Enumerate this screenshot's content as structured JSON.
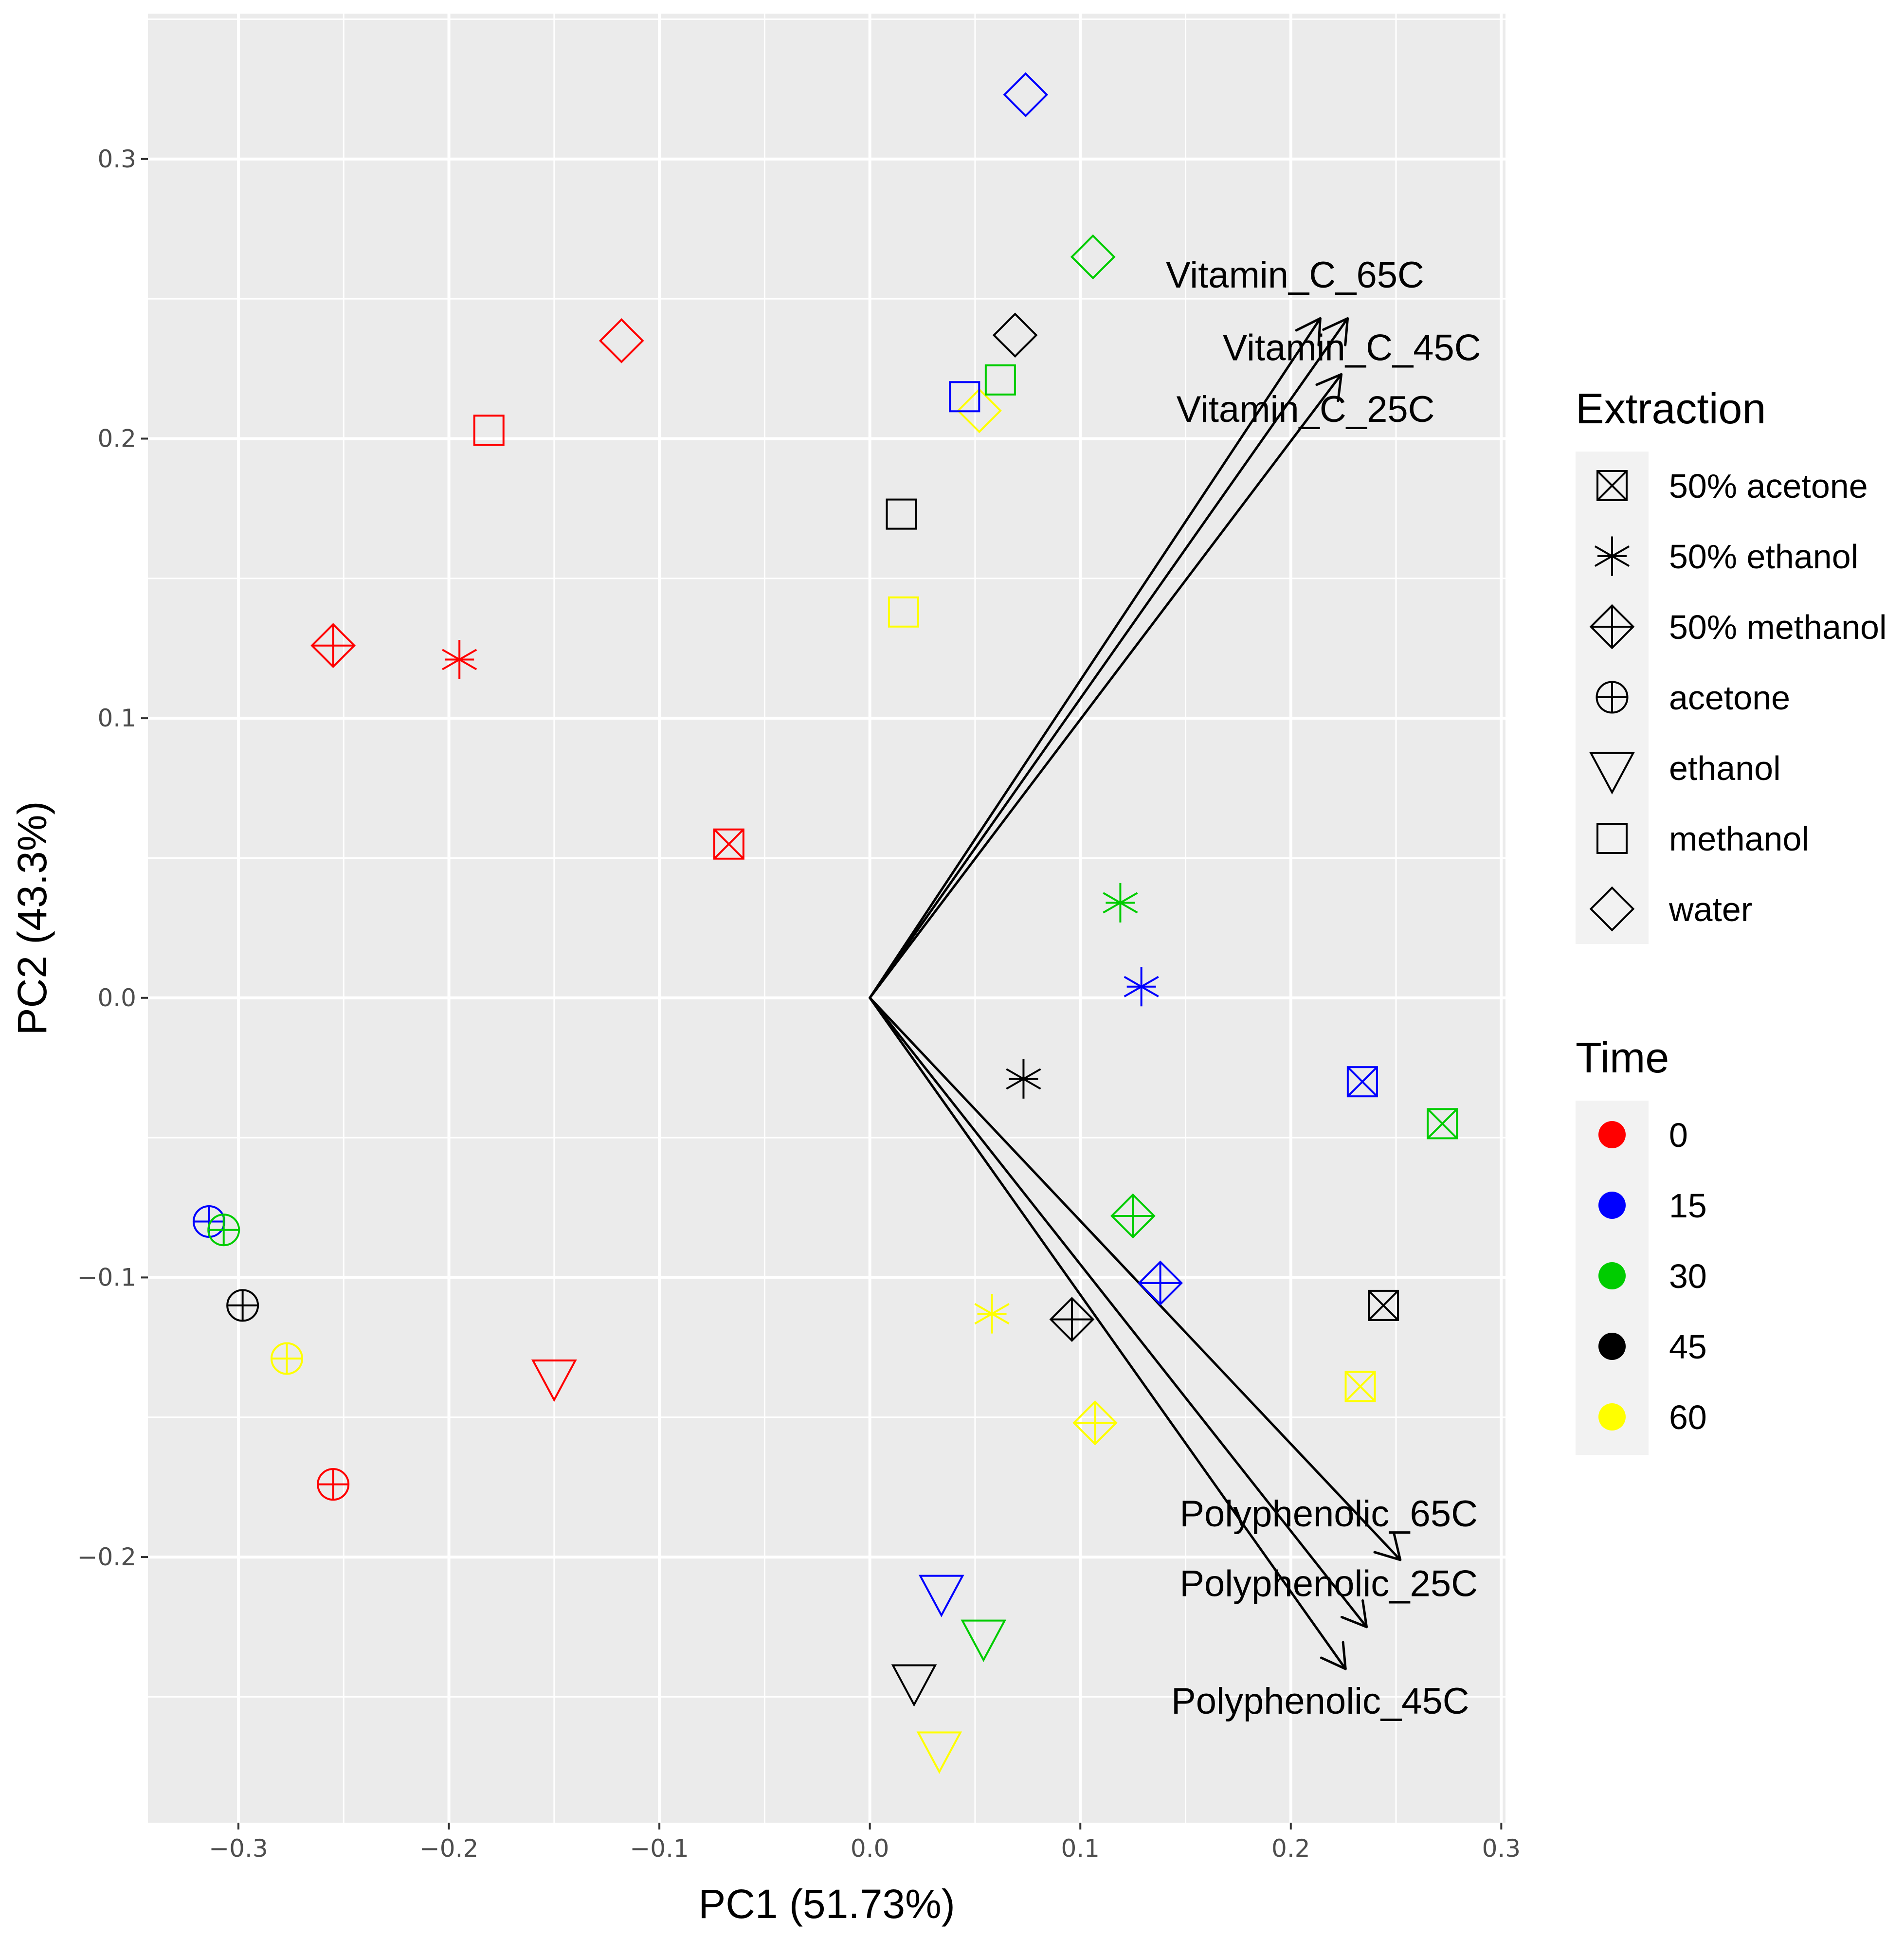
{
  "chart_data": {
    "type": "scatter",
    "subtype": "PCA biplot",
    "title": "",
    "xlabel": "PC1 (51.73%)",
    "ylabel": "PC2 (43.3%)",
    "xlim": [
      -0.343,
      0.302
    ],
    "ylim": [
      -0.295,
      0.352
    ],
    "x_ticks": [
      -0.3,
      -0.2,
      -0.1,
      0.0,
      0.1,
      0.2,
      0.3
    ],
    "x_tick_labels": [
      "−0.3",
      "−0.2",
      "−0.1",
      "0.0",
      "0.1",
      "0.2",
      "0.3"
    ],
    "y_ticks": [
      -0.2,
      -0.1,
      0.0,
      0.1,
      0.2,
      0.3
    ],
    "y_tick_labels": [
      "−0.2",
      "−0.1",
      "0.0",
      "0.1",
      "0.2",
      "0.3"
    ],
    "grid": true,
    "background": "#ebebeb",
    "legends": {
      "extraction": {
        "title": "Extraction",
        "entries": [
          {
            "label": "50% acetone",
            "shape": "square-cross"
          },
          {
            "label": "50% ethanol",
            "shape": "asterisk"
          },
          {
            "label": "50% methanol",
            "shape": "diamond-plus"
          },
          {
            "label": "acetone",
            "shape": "circle-plus"
          },
          {
            "label": "ethanol",
            "shape": "triangle-down"
          },
          {
            "label": "methanol",
            "shape": "square"
          },
          {
            "label": "water",
            "shape": "diamond"
          }
        ]
      },
      "time": {
        "title": "Time",
        "entries": [
          {
            "label": "0",
            "color": "#ff0000"
          },
          {
            "label": "15",
            "color": "#0000ff"
          },
          {
            "label": "30",
            "color": "#00cc00"
          },
          {
            "label": "45",
            "color": "#000000"
          },
          {
            "label": "60",
            "color": "#ffff00"
          }
        ]
      }
    },
    "points": [
      {
        "extraction": "water",
        "time": "15",
        "x": 0.074,
        "y": 0.323
      },
      {
        "extraction": "water",
        "time": "30",
        "x": 0.106,
        "y": 0.265
      },
      {
        "extraction": "water",
        "time": "45",
        "x": 0.069,
        "y": 0.237
      },
      {
        "extraction": "water",
        "time": "0",
        "x": -0.118,
        "y": 0.235
      },
      {
        "extraction": "water",
        "time": "60",
        "x": 0.052,
        "y": 0.21
      },
      {
        "extraction": "methanol",
        "time": "0",
        "x": -0.181,
        "y": 0.203
      },
      {
        "extraction": "methanol",
        "time": "15",
        "x": 0.045,
        "y": 0.215
      },
      {
        "extraction": "methanol",
        "time": "30",
        "x": 0.062,
        "y": 0.221
      },
      {
        "extraction": "methanol",
        "time": "45",
        "x": 0.015,
        "y": 0.173
      },
      {
        "extraction": "methanol",
        "time": "60",
        "x": 0.016,
        "y": 0.138
      },
      {
        "extraction": "50% methanol",
        "time": "0",
        "x": -0.255,
        "y": 0.126
      },
      {
        "extraction": "50% methanol",
        "time": "30",
        "x": 0.125,
        "y": -0.078
      },
      {
        "extraction": "50% methanol",
        "time": "15",
        "x": 0.138,
        "y": -0.102
      },
      {
        "extraction": "50% methanol",
        "time": "45",
        "x": 0.096,
        "y": -0.115
      },
      {
        "extraction": "50% methanol",
        "time": "60",
        "x": 0.107,
        "y": -0.152
      },
      {
        "extraction": "50% ethanol",
        "time": "0",
        "x": -0.195,
        "y": 0.121
      },
      {
        "extraction": "50% ethanol",
        "time": "30",
        "x": 0.119,
        "y": 0.034
      },
      {
        "extraction": "50% ethanol",
        "time": "15",
        "x": 0.129,
        "y": 0.004
      },
      {
        "extraction": "50% ethanol",
        "time": "45",
        "x": 0.073,
        "y": -0.029
      },
      {
        "extraction": "50% ethanol",
        "time": "60",
        "x": 0.058,
        "y": -0.113
      },
      {
        "extraction": "50% acetone",
        "time": "0",
        "x": -0.067,
        "y": 0.055
      },
      {
        "extraction": "50% acetone",
        "time": "15",
        "x": 0.234,
        "y": -0.03
      },
      {
        "extraction": "50% acetone",
        "time": "30",
        "x": 0.272,
        "y": -0.045
      },
      {
        "extraction": "50% acetone",
        "time": "45",
        "x": 0.244,
        "y": -0.11
      },
      {
        "extraction": "50% acetone",
        "time": "60",
        "x": 0.233,
        "y": -0.139
      },
      {
        "extraction": "acetone",
        "time": "15",
        "x": -0.314,
        "y": -0.08
      },
      {
        "extraction": "acetone",
        "time": "30",
        "x": -0.307,
        "y": -0.083
      },
      {
        "extraction": "acetone",
        "time": "45",
        "x": -0.298,
        "y": -0.11
      },
      {
        "extraction": "acetone",
        "time": "60",
        "x": -0.277,
        "y": -0.129
      },
      {
        "extraction": "acetone",
        "time": "0",
        "x": -0.255,
        "y": -0.174
      },
      {
        "extraction": "ethanol",
        "time": "0",
        "x": -0.15,
        "y": -0.135
      },
      {
        "extraction": "ethanol",
        "time": "15",
        "x": 0.034,
        "y": -0.212
      },
      {
        "extraction": "ethanol",
        "time": "30",
        "x": 0.054,
        "y": -0.228
      },
      {
        "extraction": "ethanol",
        "time": "45",
        "x": 0.021,
        "y": -0.244
      },
      {
        "extraction": "ethanol",
        "time": "60",
        "x": 0.033,
        "y": -0.268
      }
    ],
    "vectors": [
      {
        "name": "Vitamin_C_65C",
        "x": 0.214,
        "y": 0.243,
        "label_x": 0.202,
        "label_y": 0.254
      },
      {
        "name": "Vitamin_C_45C",
        "x": 0.227,
        "y": 0.243,
        "label_x": 0.229,
        "label_y": 0.228
      },
      {
        "name": "Vitamin_C_25C",
        "x": 0.224,
        "y": 0.223,
        "label_x": 0.207,
        "label_y": 0.206
      },
      {
        "name": "Polyphenolic_65C",
        "x": 0.252,
        "y": -0.201,
        "label_x": 0.218,
        "label_y": -0.189
      },
      {
        "name": "Polyphenolic_25C",
        "x": 0.236,
        "y": -0.225,
        "label_x": 0.218,
        "label_y": -0.214
      },
      {
        "name": "Polyphenolic_45C",
        "x": 0.226,
        "y": -0.24,
        "label_x": 0.214,
        "label_y": -0.256
      }
    ]
  }
}
